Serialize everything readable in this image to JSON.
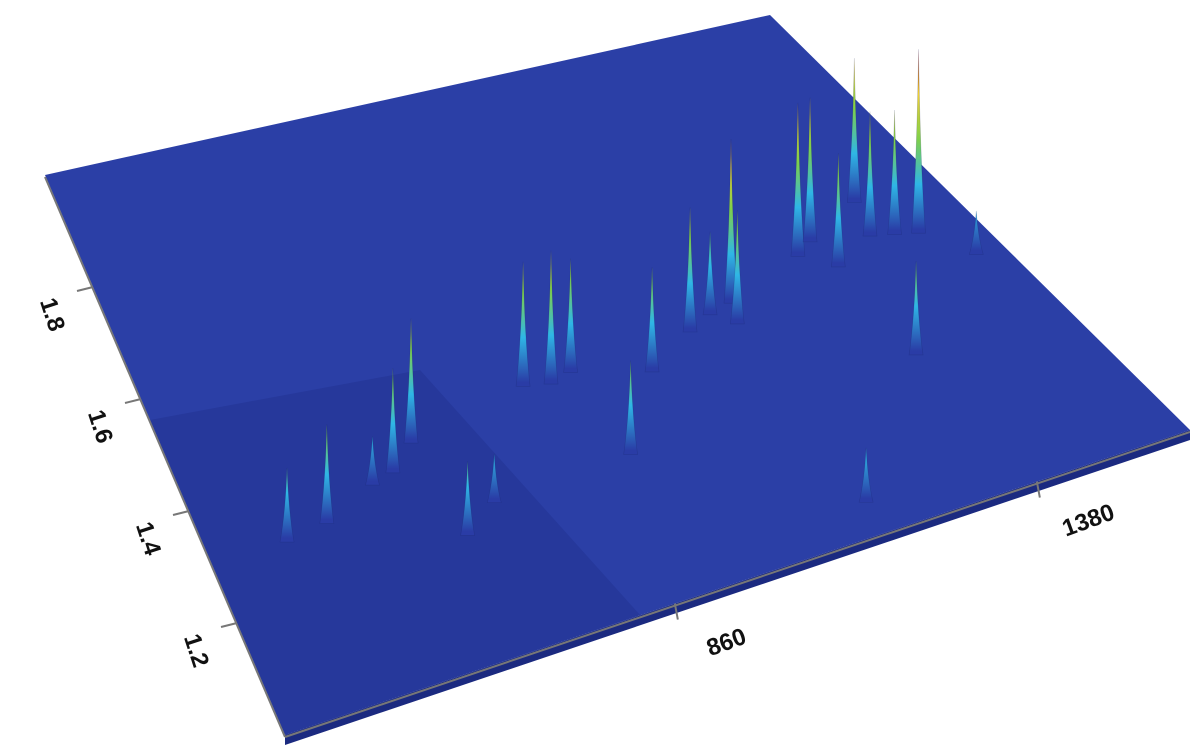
{
  "chart_data": {
    "type": "surface3d",
    "x": [
      417,
      482,
      569,
      605,
      651,
      658,
      716,
      846,
      885,
      921,
      928,
      1028,
      1115,
      1158,
      1197,
      1184,
      1171,
      1334,
      1366,
      1374,
      1470,
      1450,
      1483,
      1515,
      1374,
      1561
    ],
    "y": [
      1.31,
      1.32,
      1.36,
      1.37,
      1.41,
      1.23,
      1.27,
      1.45,
      1.44,
      1.45,
      1.28,
      1.41,
      1.46,
      1.48,
      1.49,
      1.45,
      1.07,
      1.54,
      1.56,
      1.5,
      1.61,
      1.54,
      1.53,
      1.52,
      1.3,
      1.45
    ],
    "z": [
      39,
      53,
      25,
      56,
      67,
      39,
      25,
      67,
      72,
      61,
      50,
      56,
      67,
      44,
      89,
      61,
      28,
      83,
      78,
      61,
      78,
      67,
      67,
      100,
      50,
      22
    ],
    "xlim": [
      300,
      1600
    ],
    "ylim": [
      1.0,
      2.0
    ],
    "zlim": [
      0,
      100
    ],
    "xticks": [
      860,
      1380
    ],
    "yticks": [
      1.2,
      1.4,
      1.6,
      1.8
    ],
    "colormap": [
      "#2a3ca6",
      "#2fb6e6",
      "#7fd04a",
      "#f0d030",
      "#b8281c"
    ],
    "floor_color": "#2b3fa6"
  }
}
